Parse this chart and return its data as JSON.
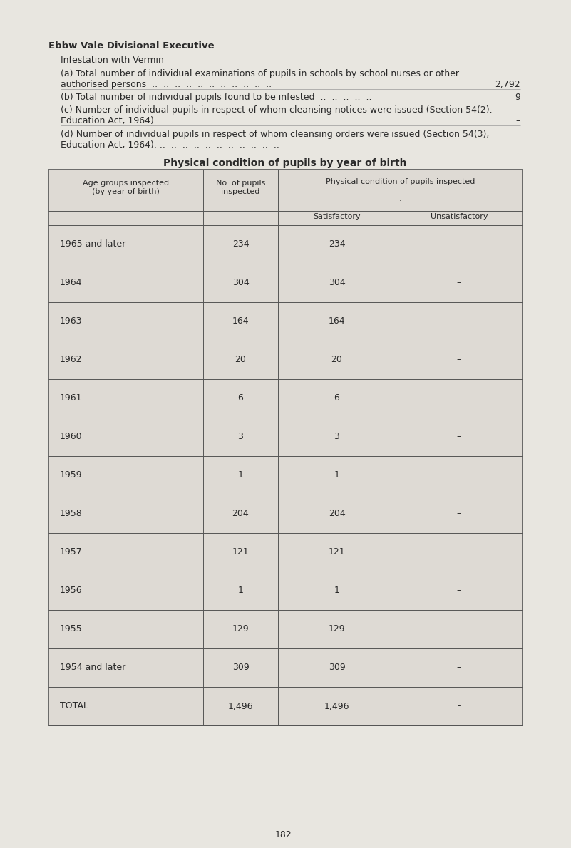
{
  "title_bold": "Ebbw Vale Divisional Executive",
  "subtitle": "Infestation with Vermin",
  "line_a1": "(a) Total number of individual examinations of pupils in schools by school nurses or other",
  "line_a2": "authorised persons  ..  ..  ..  ..  ..  ..  ..  ..  ..  ..  ..",
  "line_a_value": "2,792",
  "line_b": "(b) Total number of individual pupils found to be infested  ..  ..  ..  ..  ..",
  "line_b_value": "9",
  "line_c1": "(c) Number of individual pupils in respect of whom cleansing notices were issued (Section 54(2).",
  "line_c2": "Education Act, 1964). ..  ..  ..  ..  ..  ..  ..  ..  ..  ..  ..",
  "line_c_value": "–",
  "line_d1": "(d) Number of individual pupils in respect of whom cleansing orders were issued (Section 54(3),",
  "line_d2": "Education Act, 1964). ..  ..  ..  ..  ..  ..  ..  ..  ..  ..  ..",
  "line_d_value": "–",
  "table_title": "Physical condition of pupils by year of birth",
  "rows": [
    [
      "1965 and later",
      "234",
      "234",
      "–"
    ],
    [
      "1964",
      "304",
      "304",
      "–"
    ],
    [
      "1963",
      "164",
      "164",
      "–"
    ],
    [
      "1962",
      "20",
      "20",
      "–"
    ],
    [
      "1961",
      "6",
      "6",
      "–"
    ],
    [
      "1960",
      "3",
      "3",
      "–"
    ],
    [
      "1959",
      "1",
      "1",
      "–"
    ],
    [
      "1958",
      "204",
      "204",
      "–"
    ],
    [
      "1957",
      "121",
      "121",
      "–"
    ],
    [
      "1956",
      "1",
      "1",
      "–"
    ],
    [
      "1955",
      "129",
      "129",
      "–"
    ],
    [
      "1954 and later",
      "309",
      "309",
      "–"
    ]
  ],
  "total_row": [
    "TOTAL",
    "1,496",
    "1,496",
    "-"
  ],
  "page_number": "182.",
  "bg_color": "#e8e6e0",
  "table_bg": "#dedad4",
  "border_color": "#555555",
  "text_color": "#2a2a2a"
}
